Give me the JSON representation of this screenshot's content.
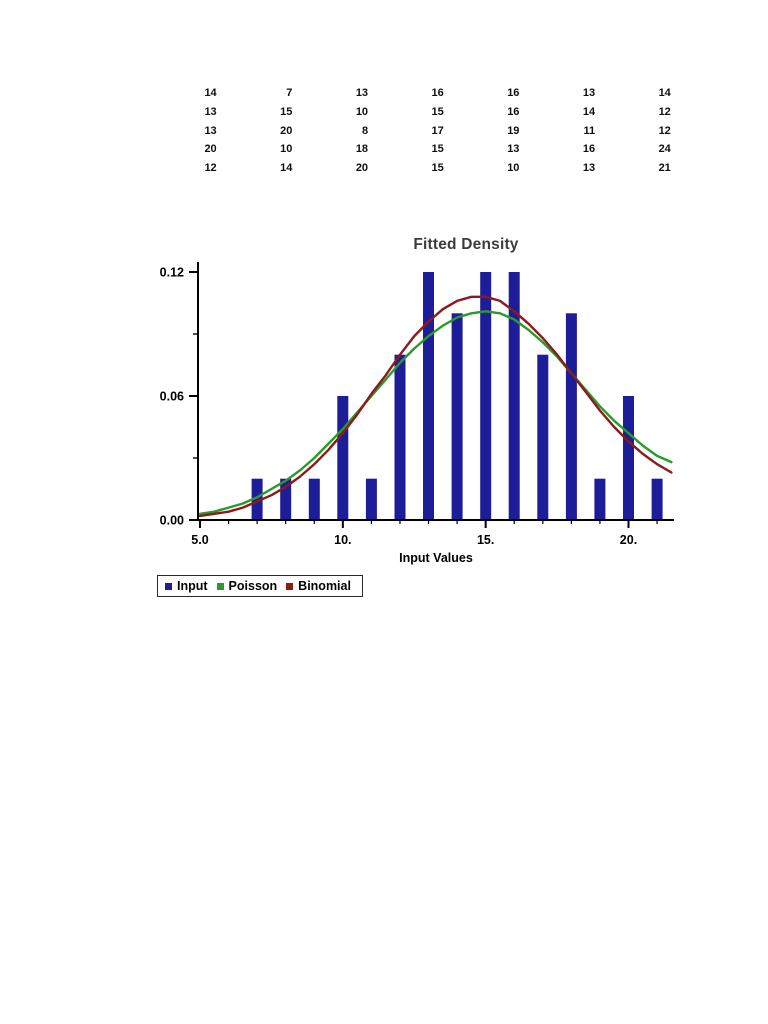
{
  "page": {
    "background": "#ffffff"
  },
  "table": {
    "rows": [
      [
        14,
        7,
        13,
        16,
        16,
        13,
        14
      ],
      [
        13,
        15,
        10,
        15,
        16,
        14,
        12
      ],
      [
        13,
        20,
        8,
        17,
        19,
        11,
        12
      ],
      [
        20,
        10,
        18,
        15,
        13,
        16,
        24
      ],
      [
        12,
        14,
        20,
        15,
        10,
        13,
        21
      ]
    ]
  },
  "chart_data": {
    "type": "bar",
    "title": "Fitted Density",
    "xlabel": "Input Values",
    "ylabel": "",
    "xlim": [
      5,
      21.6
    ],
    "ylim": [
      0,
      0.126
    ],
    "grid": false,
    "x_ticks": [
      {
        "value": 5,
        "label": "5.0"
      },
      {
        "value": 10,
        "label": "10."
      },
      {
        "value": 15,
        "label": "15."
      },
      {
        "value": 20,
        "label": "20."
      }
    ],
    "x_minor_ticks": [
      6,
      7,
      8,
      9,
      11,
      12,
      13,
      14,
      16,
      17,
      18,
      19,
      21
    ],
    "y_ticks": [
      {
        "value": 0,
        "label": "0.00"
      },
      {
        "value": 0.06,
        "label": "0.06"
      },
      {
        "value": 0.12,
        "label": "0.12"
      }
    ],
    "y_minor_ticks": [
      0.03,
      0.09
    ],
    "bars": {
      "name": "Input",
      "color": "#1d1d99",
      "bar_width_units": 0.38,
      "x": [
        7,
        8,
        9,
        10,
        11,
        12,
        13,
        14,
        15,
        16,
        17,
        18,
        19,
        20,
        21
      ],
      "values": [
        0.02,
        0.02,
        0.02,
        0.06,
        0.02,
        0.08,
        0.12,
        0.1,
        0.12,
        0.12,
        0.08,
        0.1,
        0.02,
        0.06,
        0.02
      ]
    },
    "series": [
      {
        "name": "Poisson",
        "type": "line",
        "color": "#2a9a2a",
        "x": [
          5,
          5.5,
          6,
          6.5,
          7,
          7.5,
          8,
          8.5,
          9,
          9.5,
          10,
          10.5,
          11,
          11.5,
          12,
          12.5,
          13,
          13.5,
          14,
          14.5,
          15,
          15.5,
          16,
          16.5,
          17,
          17.5,
          18,
          18.5,
          19,
          19.5,
          20,
          20.5,
          21,
          21.5
        ],
        "y": [
          0.003,
          0.004,
          0.006,
          0.008,
          0.011,
          0.015,
          0.019,
          0.024,
          0.03,
          0.037,
          0.044,
          0.052,
          0.06,
          0.068,
          0.076,
          0.083,
          0.089,
          0.094,
          0.098,
          0.1,
          0.101,
          0.1,
          0.097,
          0.092,
          0.086,
          0.079,
          0.071,
          0.063,
          0.055,
          0.048,
          0.042,
          0.036,
          0.031,
          0.028
        ]
      },
      {
        "name": "Binomial",
        "type": "line",
        "color": "#8b1a1a",
        "x": [
          5,
          5.5,
          6,
          6.5,
          7,
          7.5,
          8,
          8.5,
          9,
          9.5,
          10,
          10.5,
          11,
          11.5,
          12,
          12.5,
          13,
          13.5,
          14,
          14.5,
          15,
          15.5,
          16,
          16.5,
          17,
          17.5,
          18,
          18.5,
          19,
          19.5,
          20,
          20.5,
          21,
          21.5
        ],
        "y": [
          0.002,
          0.003,
          0.004,
          0.006,
          0.009,
          0.012,
          0.016,
          0.021,
          0.027,
          0.034,
          0.042,
          0.051,
          0.061,
          0.07,
          0.08,
          0.089,
          0.096,
          0.102,
          0.106,
          0.108,
          0.108,
          0.106,
          0.101,
          0.095,
          0.088,
          0.08,
          0.071,
          0.062,
          0.053,
          0.045,
          0.038,
          0.032,
          0.027,
          0.023
        ]
      }
    ],
    "legend": {
      "position": "bottom-left",
      "entries": [
        {
          "label": "Input",
          "color": "#1d1d99"
        },
        {
          "label": "Poisson",
          "color": "#2a9a2a"
        },
        {
          "label": "Binomial",
          "color": "#8b1a1a"
        }
      ]
    }
  }
}
